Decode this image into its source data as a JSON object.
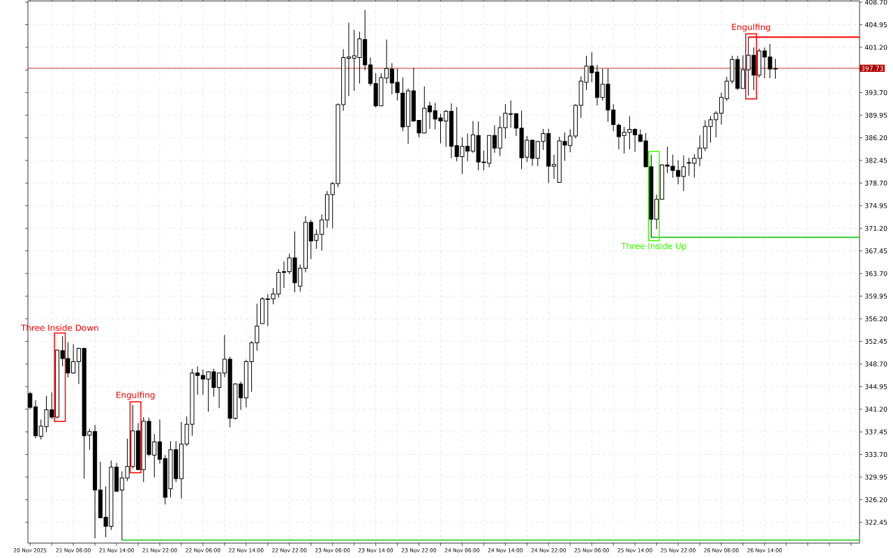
{
  "chart_data": {
    "type": "candlestick",
    "x": [
      "2025-11-20T22:00",
      "2025-11-20T23:00",
      "2025-11-21T00:00",
      "2025-11-21T01:00",
      "2025-11-21T02:00",
      "2025-11-21T03:00",
      "2025-11-21T04:00",
      "2025-11-21T05:00",
      "2025-11-21T06:00",
      "2025-11-21T07:00",
      "2025-11-21T08:00",
      "2025-11-21T09:00",
      "2025-11-21T10:00",
      "2025-11-21T11:00",
      "2025-11-21T12:00",
      "2025-11-21T13:00",
      "2025-11-21T14:00",
      "2025-11-21T15:00",
      "2025-11-21T16:00",
      "2025-11-21T17:00",
      "2025-11-21T18:00",
      "2025-11-21T19:00",
      "2025-11-21T20:00",
      "2025-11-21T21:00",
      "2025-11-21T22:00",
      "2025-11-21T23:00",
      "2025-11-22T00:00",
      "2025-11-22T01:00",
      "2025-11-22T02:00",
      "2025-11-22T03:00",
      "2025-11-22T04:00",
      "2025-11-22T05:00",
      "2025-11-22T06:00",
      "2025-11-22T07:00",
      "2025-11-22T08:00",
      "2025-11-22T09:00",
      "2025-11-22T10:00",
      "2025-11-22T11:00",
      "2025-11-22T12:00",
      "2025-11-22T13:00",
      "2025-11-22T14:00",
      "2025-11-22T15:00",
      "2025-11-22T16:00",
      "2025-11-22T17:00",
      "2025-11-22T18:00",
      "2025-11-22T19:00",
      "2025-11-22T20:00",
      "2025-11-22T21:00",
      "2025-11-22T22:00",
      "2025-11-22T23:00",
      "2025-11-23T00:00",
      "2025-11-23T01:00",
      "2025-11-23T02:00",
      "2025-11-23T03:00",
      "2025-11-23T04:00",
      "2025-11-23T05:00",
      "2025-11-23T06:00",
      "2025-11-23T07:00",
      "2025-11-23T08:00",
      "2025-11-23T09:00",
      "2025-11-23T10:00",
      "2025-11-23T11:00",
      "2025-11-23T12:00",
      "2025-11-23T13:00",
      "2025-11-23T14:00",
      "2025-11-23T15:00",
      "2025-11-23T16:00",
      "2025-11-23T17:00",
      "2025-11-23T18:00",
      "2025-11-23T19:00",
      "2025-11-23T20:00",
      "2025-11-23T21:00",
      "2025-11-23T22:00",
      "2025-11-23T23:00",
      "2025-11-24T00:00",
      "2025-11-24T01:00",
      "2025-11-24T02:00",
      "2025-11-24T03:00",
      "2025-11-24T04:00",
      "2025-11-24T05:00",
      "2025-11-24T06:00",
      "2025-11-24T07:00",
      "2025-11-24T08:00",
      "2025-11-24T09:00",
      "2025-11-24T10:00",
      "2025-11-24T11:00",
      "2025-11-24T12:00",
      "2025-11-24T13:00",
      "2025-11-24T14:00",
      "2025-11-24T15:00",
      "2025-11-24T16:00",
      "2025-11-24T17:00",
      "2025-11-24T18:00",
      "2025-11-24T19:00",
      "2025-11-24T20:00",
      "2025-11-24T21:00",
      "2025-11-24T22:00",
      "2025-11-24T23:00",
      "2025-11-25T00:00",
      "2025-11-25T01:00",
      "2025-11-25T02:00",
      "2025-11-25T03:00",
      "2025-11-25T04:00",
      "2025-11-25T05:00",
      "2025-11-25T06:00",
      "2025-11-25T07:00",
      "2025-11-25T08:00",
      "2025-11-25T09:00",
      "2025-11-25T10:00",
      "2025-11-25T11:00",
      "2025-11-25T12:00",
      "2025-11-25T13:00",
      "2025-11-25T14:00",
      "2025-11-25T15:00",
      "2025-11-25T16:00",
      "2025-11-25T17:00",
      "2025-11-25T18:00",
      "2025-11-25T19:00",
      "2025-11-25T20:00",
      "2025-11-25T21:00",
      "2025-11-25T22:00",
      "2025-11-25T23:00",
      "2025-11-26T00:00",
      "2025-11-26T01:00",
      "2025-11-26T02:00",
      "2025-11-26T03:00",
      "2025-11-26T04:00",
      "2025-11-26T05:00",
      "2025-11-26T06:00",
      "2025-11-26T07:00",
      "2025-11-26T08:00",
      "2025-11-26T09:00",
      "2025-11-26T10:00",
      "2025-11-26T11:00",
      "2025-11-26T12:00",
      "2025-11-26T13:00",
      "2025-11-26T14:00",
      "2025-11-26T15:00",
      "2025-11-26T16:00"
    ],
    "ohlc": [
      [
        343.8,
        344.1,
        341.2,
        341.5
      ],
      [
        341.6,
        342.7,
        336.4,
        336.8
      ],
      [
        336.7,
        339.5,
        336.2,
        338.4
      ],
      [
        338.3,
        343.4,
        337.4,
        341.1
      ],
      [
        341.1,
        344.0,
        339.6,
        339.9
      ],
      [
        339.9,
        351.1,
        339.7,
        351.0
      ],
      [
        350.9,
        353.3,
        348.3,
        349.6
      ],
      [
        349.6,
        352.3,
        346.5,
        347.2
      ],
      [
        347.2,
        352.0,
        347.1,
        349.1
      ],
      [
        349.1,
        351.4,
        345.4,
        351.3
      ],
      [
        351.3,
        351.4,
        329.7,
        336.8
      ],
      [
        336.9,
        338.0,
        334.5,
        337.5
      ],
      [
        337.5,
        338.6,
        319.8,
        327.8
      ],
      [
        327.8,
        332.5,
        323.1,
        323.2
      ],
      [
        323.3,
        328.4,
        320.0,
        321.8
      ],
      [
        321.8,
        332.7,
        321.2,
        331.6
      ],
      [
        331.6,
        332.3,
        327.5,
        327.6
      ],
      [
        327.8,
        330.9,
        319.5,
        329.8
      ],
      [
        329.8,
        336.3,
        329.3,
        331.7
      ],
      [
        331.7,
        341.9,
        331.4,
        337.6
      ],
      [
        337.6,
        338.9,
        331.2,
        331.2
      ],
      [
        331.2,
        339.9,
        329.1,
        339.2
      ],
      [
        339.2,
        339.8,
        333.4,
        333.7
      ],
      [
        333.6,
        337.1,
        329.9,
        335.8
      ],
      [
        335.8,
        339.5,
        332.2,
        332.9
      ],
      [
        333.0,
        333.6,
        325.4,
        326.6
      ],
      [
        328.0,
        335.9,
        326.6,
        334.5
      ],
      [
        334.5,
        335.9,
        329.1,
        329.7
      ],
      [
        329.7,
        339.1,
        326.4,
        335.4
      ],
      [
        335.4,
        340.0,
        335.1,
        338.7
      ],
      [
        338.7,
        347.9,
        336.8,
        347.2
      ],
      [
        347.2,
        348.3,
        343.6,
        346.8
      ],
      [
        346.8,
        347.8,
        343.6,
        346.2
      ],
      [
        346.2,
        347.5,
        340.8,
        347.4
      ],
      [
        347.4,
        347.9,
        343.3,
        344.8
      ],
      [
        344.8,
        347.3,
        341.4,
        347.2
      ],
      [
        347.2,
        353.5,
        346.5,
        349.5
      ],
      [
        349.5,
        349.9,
        338.2,
        339.7
      ],
      [
        339.7,
        345.5,
        339.5,
        345.4
      ],
      [
        345.4,
        345.8,
        341.1,
        343.1
      ],
      [
        343.1,
        349.4,
        341.5,
        349.1
      ],
      [
        349.1,
        352.5,
        344.1,
        352.2
      ],
      [
        352.2,
        358.7,
        350.9,
        355.0
      ],
      [
        355.4,
        359.8,
        355.4,
        359.5
      ],
      [
        359.5,
        360.3,
        355.0,
        359.4
      ],
      [
        359.5,
        361.3,
        358.6,
        360.3
      ],
      [
        360.3,
        364.4,
        359.7,
        363.9
      ],
      [
        364.0,
        365.7,
        361.3,
        363.9
      ],
      [
        364.0,
        367.0,
        363.6,
        366.3
      ],
      [
        366.3,
        370.7,
        360.6,
        362.2
      ],
      [
        361.6,
        365.2,
        360.7,
        364.6
      ],
      [
        364.6,
        373.2,
        363.9,
        372.2
      ],
      [
        372.2,
        372.6,
        366.1,
        369.1
      ],
      [
        369.2,
        371.0,
        367.8,
        370.2
      ],
      [
        370.2,
        373.5,
        367.5,
        372.6
      ],
      [
        372.6,
        377.4,
        371.3,
        376.8
      ],
      [
        376.8,
        378.9,
        371.2,
        378.6
      ],
      [
        378.6,
        391.9,
        378.0,
        391.7
      ],
      [
        391.7,
        400.9,
        390.7,
        399.5
      ],
      [
        399.4,
        405.3,
        393.1,
        399.6
      ],
      [
        399.4,
        404.1,
        394.0,
        399.8
      ],
      [
        399.5,
        403.8,
        395.2,
        402.6
      ],
      [
        402.5,
        407.4,
        397.4,
        398.3
      ],
      [
        398.3,
        399.5,
        394.8,
        395.2
      ],
      [
        395.2,
        396.9,
        391.2,
        391.5
      ],
      [
        391.5,
        396.9,
        391.5,
        396.2
      ],
      [
        396.1,
        402.5,
        395.2,
        397.7
      ],
      [
        397.6,
        398.6,
        393.4,
        395.3
      ],
      [
        395.4,
        397.7,
        392.4,
        393.7
      ],
      [
        393.6,
        396.2,
        387.3,
        388.0
      ],
      [
        388.1,
        394.4,
        385.2,
        394.0
      ],
      [
        394.0,
        397.8,
        388.9,
        389.0
      ],
      [
        389.1,
        389.1,
        386.3,
        387.0
      ],
      [
        387.0,
        394.7,
        387.0,
        391.1
      ],
      [
        391.5,
        392.2,
        387.7,
        390.5
      ],
      [
        390.7,
        392.0,
        387.6,
        389.3
      ],
      [
        389.5,
        390.2,
        385.3,
        389.0
      ],
      [
        389.0,
        390.8,
        384.7,
        390.6
      ],
      [
        390.6,
        391.9,
        382.8,
        384.8
      ],
      [
        384.9,
        391.3,
        382.3,
        383.1
      ],
      [
        383.1,
        386.3,
        380.2,
        384.8
      ],
      [
        384.8,
        386.9,
        382.3,
        384.0
      ],
      [
        384.0,
        389.0,
        383.7,
        386.7
      ],
      [
        386.6,
        388.9,
        380.8,
        382.2
      ],
      [
        382.2,
        384.1,
        380.8,
        382.1
      ],
      [
        382.0,
        386.6,
        381.3,
        386.6
      ],
      [
        386.6,
        388.3,
        383.7,
        384.5
      ],
      [
        384.5,
        389.8,
        383.2,
        387.9
      ],
      [
        387.9,
        391.8,
        386.1,
        390.3
      ],
      [
        390.2,
        392.4,
        387.9,
        390.1
      ],
      [
        390.2,
        390.3,
        386.5,
        387.8
      ],
      [
        387.8,
        390.7,
        381.0,
        382.9
      ],
      [
        383.0,
        386.5,
        382.2,
        385.8
      ],
      [
        385.8,
        385.9,
        381.6,
        382.8
      ],
      [
        382.8,
        385.7,
        381.5,
        385.6
      ],
      [
        385.6,
        387.7,
        384.2,
        386.9
      ],
      [
        386.9,
        387.7,
        378.7,
        381.5
      ],
      [
        381.5,
        383.4,
        379.4,
        381.8
      ],
      [
        378.8,
        386.4,
        378.8,
        385.7
      ],
      [
        385.6,
        387.1,
        382.4,
        385.0
      ],
      [
        384.9,
        387.6,
        383.8,
        386.5
      ],
      [
        386.5,
        391.8,
        386.1,
        391.6
      ],
      [
        391.6,
        396.4,
        389.5,
        395.6
      ],
      [
        395.4,
        399.8,
        394.1,
        398.1
      ],
      [
        398.1,
        400.4,
        395.4,
        397.0
      ],
      [
        397.1,
        398.3,
        391.6,
        392.9
      ],
      [
        392.9,
        397.7,
        392.4,
        395.1
      ],
      [
        395.1,
        397.7,
        388.9,
        390.8
      ],
      [
        390.8,
        391.8,
        387.3,
        388.4
      ],
      [
        388.3,
        388.6,
        384.3,
        386.4
      ],
      [
        386.6,
        388.0,
        383.6,
        387.1
      ],
      [
        387.1,
        389.8,
        384.3,
        387.6
      ],
      [
        387.6,
        387.8,
        383.9,
        386.7
      ],
      [
        386.7,
        387.6,
        385.5,
        385.6
      ],
      [
        385.7,
        387.0,
        381.3,
        381.4
      ],
      [
        381.4,
        383.4,
        369.7,
        372.7
      ],
      [
        372.7,
        376.8,
        371.1,
        376.0
      ],
      [
        376.0,
        381.8,
        376.0,
        381.7
      ],
      [
        381.7,
        384.7,
        380.4,
        381.5
      ],
      [
        381.5,
        383.4,
        379.6,
        380.8
      ],
      [
        380.8,
        382.5,
        378.5,
        379.8
      ],
      [
        379.8,
        383.3,
        377.4,
        381.4
      ],
      [
        382.1,
        382.9,
        379.9,
        382.0
      ],
      [
        382.0,
        383.5,
        379.6,
        382.8
      ],
      [
        382.8,
        386.6,
        381.5,
        384.5
      ],
      [
        384.5,
        389.1,
        384.0,
        388.1
      ],
      [
        388.1,
        389.8,
        385.4,
        389.2
      ],
      [
        389.2,
        390.6,
        386.3,
        390.3
      ],
      [
        390.3,
        393.7,
        388.4,
        392.9
      ],
      [
        392.7,
        396.3,
        392.3,
        395.6
      ],
      [
        395.6,
        399.8,
        395.2,
        399.2
      ],
      [
        399.2,
        399.8,
        394.1,
        394.4
      ],
      [
        394.4,
        399.9,
        394.4,
        397.5
      ],
      [
        397.5,
        402.9,
        393.2,
        399.9
      ],
      [
        399.9,
        401.2,
        394.1,
        396.6
      ],
      [
        396.6,
        401.0,
        396.2,
        400.6
      ],
      [
        400.6,
        401.2,
        396.1,
        399.6
      ],
      [
        399.6,
        401.8,
        396.1,
        397.6
      ],
      [
        397.6,
        399.3,
        396.0,
        397.7
      ]
    ],
    "series": [
      {
        "type": "line",
        "x": [
          "2025-11-21T15:00",
          "2025-11-27T07:35"
        ],
        "values": [
          319.5,
          319.5
        ],
        "color": "#32cd32"
      },
      {
        "type": "line",
        "x": [
          "2025-11-25T17:00",
          "2025-11-27T07:35"
        ],
        "values": [
          369.7,
          369.7
        ],
        "color": "#32cd32"
      },
      {
        "type": "line",
        "x": [
          "2025-11-26T11:00",
          "2025-11-27T07:35"
        ],
        "values": [
          402.9,
          402.9
        ],
        "color": "#ff0000"
      }
    ],
    "ref_lines": [
      {
        "axis": "y",
        "value": 397.73,
        "label": "397.73",
        "color": "#b00000"
      }
    ],
    "annotations": [
      {
        "text": "Three Inside Down",
        "x": "2025-11-21T03:00",
        "y": 351.1
      },
      {
        "text": "Engulfing",
        "x": "2025-11-21T17:00",
        "y": 341.9
      },
      {
        "text": "Three Inside Up",
        "x": "2025-11-25T17:00",
        "y": 369.7
      },
      {
        "text": "Engulfing",
        "x": "2025-11-26T11:00",
        "y": 402.9
      }
    ],
    "xlim": [
      "2025-11-20T21:35",
      "2025-11-27T07:35"
    ],
    "xticks": [
      {
        "value": "2025-11-20T22:00",
        "label": "20 Nov 2025"
      },
      {
        "value": "2025-11-21T02:00",
        "label": null
      },
      {
        "value": "2025-11-21T06:00",
        "label": "21 Nov 06:00"
      },
      {
        "value": "2025-11-21T10:00",
        "label": null
      },
      {
        "value": "2025-11-21T14:00",
        "label": "21 Nov 14:00"
      },
      {
        "value": "2025-11-21T18:00",
        "label": null
      },
      {
        "value": "2025-11-21T22:00",
        "label": "21 Nov 22:00"
      },
      {
        "value": "2025-11-22T02:00",
        "label": null
      },
      {
        "value": "2025-11-22T06:00",
        "label": "22 Nov 06:00"
      },
      {
        "value": "2025-11-22T10:00",
        "label": null
      },
      {
        "value": "2025-11-22T14:00",
        "label": "22 Nov 14:00"
      },
      {
        "value": "2025-11-22T18:00",
        "label": null
      },
      {
        "value": "2025-11-22T22:00",
        "label": "22 Nov 22:00"
      },
      {
        "value": "2025-11-23T02:00",
        "label": null
      },
      {
        "value": "2025-11-23T06:00",
        "label": "23 Nov 06:00"
      },
      {
        "value": "2025-11-23T10:00",
        "label": null
      },
      {
        "value": "2025-11-23T14:00",
        "label": "23 Nov 14:00"
      },
      {
        "value": "2025-11-23T18:00",
        "label": null
      },
      {
        "value": "2025-11-23T22:00",
        "label": "23 Nov 22:00"
      },
      {
        "value": "2025-11-24T02:00",
        "label": null
      },
      {
        "value": "2025-11-24T06:00",
        "label": "24 Nov 06:00"
      },
      {
        "value": "2025-11-24T10:00",
        "label": null
      },
      {
        "value": "2025-11-24T14:00",
        "label": "24 Nov 14:00"
      },
      {
        "value": "2025-11-24T18:00",
        "label": null
      },
      {
        "value": "2025-11-24T22:00",
        "label": "24 Nov 22:00"
      },
      {
        "value": "2025-11-25T02:00",
        "label": null
      },
      {
        "value": "2025-11-25T06:00",
        "label": "25 Nov 06:00"
      },
      {
        "value": "2025-11-25T10:00",
        "label": null
      },
      {
        "value": "2025-11-25T14:00",
        "label": "25 Nov 14:00"
      },
      {
        "value": "2025-11-25T18:00",
        "label": null
      },
      {
        "value": "2025-11-25T22:00",
        "label": "25 Nov 22:00"
      },
      {
        "value": "2025-11-26T02:00",
        "label": null
      },
      {
        "value": "2025-11-26T06:00",
        "label": "26 Nov 06:00"
      },
      {
        "value": "2025-11-26T10:00",
        "label": null
      },
      {
        "value": "2025-11-26T14:00",
        "label": "26 Nov 14:00"
      },
      {
        "value": "2025-11-26T18:00",
        "label": null
      },
      {
        "value": "2025-11-26T22:00",
        "label": null
      },
      {
        "value": "2025-11-27T02:00",
        "label": null
      },
      {
        "value": "2025-11-27T06:00",
        "label": null
      }
    ],
    "ylim": [
      319.0,
      408.9
    ],
    "yticks": [
      {
        "value": 408.7,
        "label": "408.70"
      },
      {
        "value": 404.95,
        "label": "404.95"
      },
      {
        "value": 401.2,
        "label": "401.20"
      },
      {
        "value": 397.45,
        "label": null
      },
      {
        "value": 393.7,
        "label": "393.70"
      },
      {
        "value": 389.95,
        "label": "389.95"
      },
      {
        "value": 386.2,
        "label": "386.20"
      },
      {
        "value": 382.45,
        "label": "382.45"
      },
      {
        "value": 378.7,
        "label": "378.70"
      },
      {
        "value": 374.95,
        "label": "374.95"
      },
      {
        "value": 371.2,
        "label": "371.20"
      },
      {
        "value": 367.45,
        "label": "367.45"
      },
      {
        "value": 363.7,
        "label": "363.70"
      },
      {
        "value": 359.95,
        "label": "359.95"
      },
      {
        "value": 356.2,
        "label": "356.20"
      },
      {
        "value": 352.45,
        "label": "352.45"
      },
      {
        "value": 348.7,
        "label": "348.70"
      },
      {
        "value": 344.95,
        "label": "344.95"
      },
      {
        "value": 341.2,
        "label": "341.20"
      },
      {
        "value": 337.45,
        "label": "337.45"
      },
      {
        "value": 333.7,
        "label": "333.70"
      },
      {
        "value": 329.95,
        "label": "329.95"
      },
      {
        "value": 326.2,
        "label": "326.20"
      },
      {
        "value": 322.45,
        "label": "322.45"
      }
    ],
    "grid": true
  }
}
